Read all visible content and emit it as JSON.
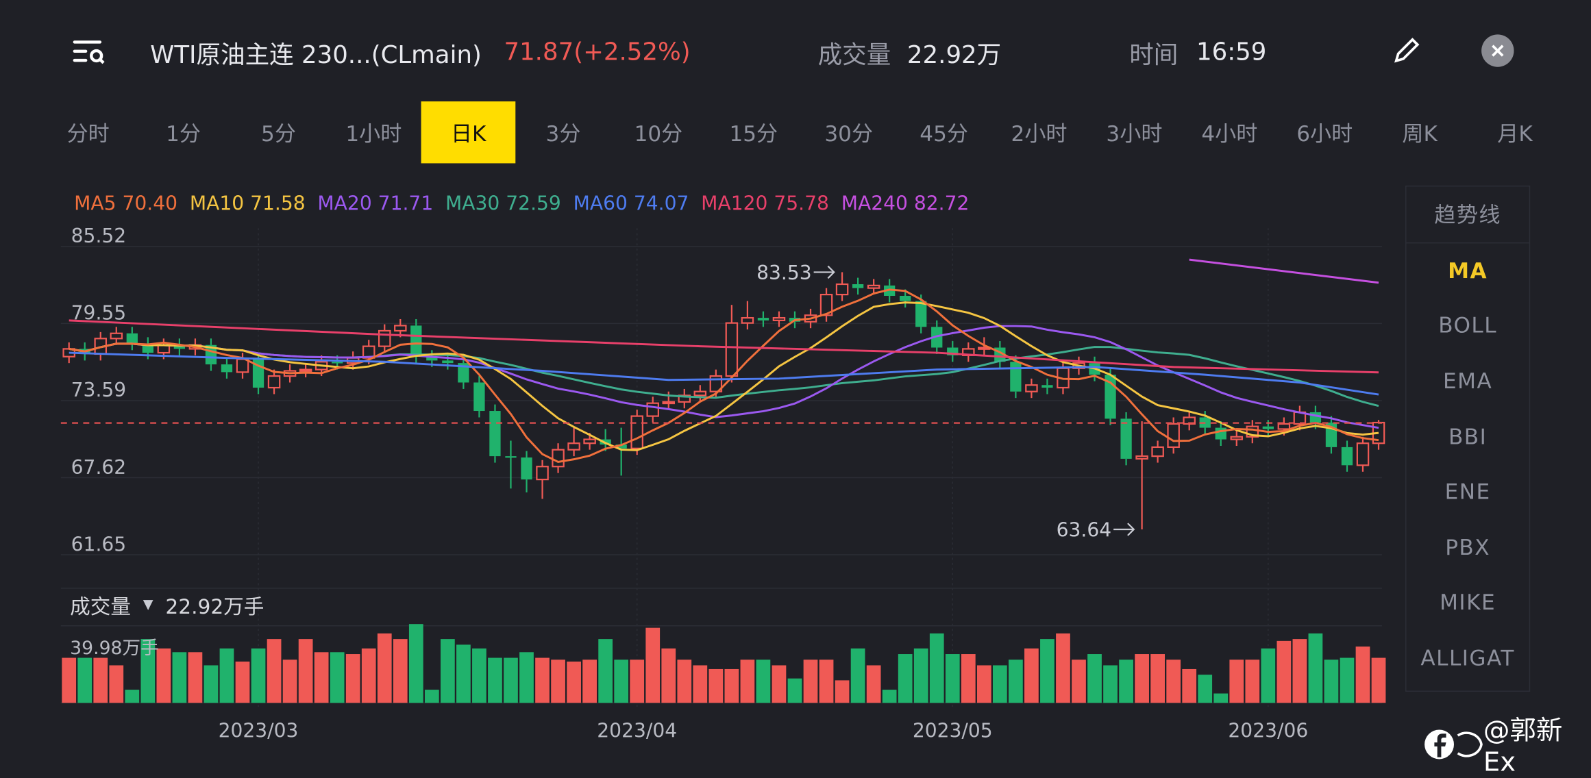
{
  "header": {
    "title": "WTI原油主连 230...(CLmain)",
    "price": "71.87(+2.52%)",
    "volume_label": "成交量",
    "volume_value": "22.92万",
    "time_label": "时间",
    "time_value": "16:59"
  },
  "tabs": [
    "分时",
    "1分",
    "5分",
    "1小时",
    "日K",
    "3分",
    "10分",
    "15分",
    "30分",
    "45分",
    "2小时",
    "3小时",
    "4小时",
    "6小时",
    "周K",
    "月K"
  ],
  "active_tab": "日K",
  "ma_legend": [
    {
      "label": "MA5 70.40",
      "color": "#f0703c"
    },
    {
      "label": "MA10 71.58",
      "color": "#f5c542"
    },
    {
      "label": "MA20 71.71",
      "color": "#9b59f0"
    },
    {
      "label": "MA30 72.59",
      "color": "#3fae8f"
    },
    {
      "label": "MA60 74.07",
      "color": "#4e7cf0"
    },
    {
      "label": "MA120 75.78",
      "color": "#e8406a"
    },
    {
      "label": "MA240 82.72",
      "color": "#c550e0"
    }
  ],
  "indicators": [
    "趋势线",
    "MA",
    "BOLL",
    "EMA",
    "BBI",
    "ENE",
    "PBX",
    "MIKE",
    "ALLIGAT"
  ],
  "active_indicator": "MA",
  "volume_panel": {
    "label": "成交量",
    "value": "22.92万手",
    "max_label": "39.98万手"
  },
  "watermark": "@郭新Ex",
  "colors": {
    "up": "#f05a55",
    "down": "#20b26c",
    "accent": "#ffdd00"
  },
  "chart_data": {
    "type": "candlestick",
    "y_ticks": [
      "85.52",
      "79.55",
      "73.59",
      "67.62",
      "61.65"
    ],
    "ylim": [
      61.65,
      85.52
    ],
    "last_price": 71.87,
    "annotations": [
      {
        "text": "83.53",
        "index": 49,
        "value": 83.53
      },
      {
        "text": "63.64",
        "index": 68,
        "value": 63.64
      }
    ],
    "x_labels": [
      {
        "text": "2023/03",
        "index": 12
      },
      {
        "text": "2023/04",
        "index": 36
      },
      {
        "text": "2023/05",
        "index": 56
      },
      {
        "text": "2023/06",
        "index": 76
      }
    ],
    "ohlc": [
      [
        77.0,
        78.1,
        76.5,
        77.6
      ],
      [
        77.6,
        78.1,
        76.7,
        77.2
      ],
      [
        77.2,
        78.9,
        76.7,
        78.4
      ],
      [
        78.4,
        79.3,
        77.9,
        78.8
      ],
      [
        78.8,
        79.3,
        77.5,
        78.0
      ],
      [
        78.0,
        78.5,
        76.8,
        77.3
      ],
      [
        77.3,
        78.4,
        76.8,
        77.9
      ],
      [
        77.9,
        78.4,
        77.1,
        77.6
      ],
      [
        77.6,
        78.4,
        77.1,
        77.9
      ],
      [
        77.9,
        78.4,
        75.9,
        76.4
      ],
      [
        76.4,
        76.9,
        75.3,
        75.8
      ],
      [
        75.8,
        77.3,
        75.3,
        76.8
      ],
      [
        76.8,
        77.3,
        74.1,
        74.6
      ],
      [
        74.6,
        76.0,
        74.1,
        75.5
      ],
      [
        75.5,
        76.4,
        75.0,
        75.9
      ],
      [
        75.9,
        76.5,
        75.4,
        76.0
      ],
      [
        76.0,
        77.1,
        75.5,
        76.6
      ],
      [
        76.6,
        77.1,
        76.0,
        76.5
      ],
      [
        76.5,
        77.4,
        76.0,
        76.9
      ],
      [
        76.9,
        78.3,
        76.4,
        77.8
      ],
      [
        77.8,
        79.5,
        77.3,
        79.0
      ],
      [
        79.0,
        79.9,
        78.5,
        79.4
      ],
      [
        79.4,
        79.9,
        76.5,
        77.0
      ],
      [
        77.0,
        77.5,
        76.2,
        76.7
      ],
      [
        76.7,
        77.2,
        76.0,
        76.5
      ],
      [
        76.5,
        77.0,
        74.5,
        75.0
      ],
      [
        75.0,
        75.5,
        72.3,
        72.8
      ],
      [
        72.8,
        73.3,
        68.8,
        69.3
      ],
      [
        69.3,
        70.5,
        66.8,
        69.2
      ],
      [
        69.2,
        69.7,
        66.5,
        67.5
      ],
      [
        67.5,
        69.0,
        66.0,
        68.5
      ],
      [
        68.5,
        70.3,
        68.0,
        69.8
      ],
      [
        69.8,
        71.5,
        69.3,
        70.3
      ],
      [
        70.3,
        71.1,
        69.8,
        70.6
      ],
      [
        70.6,
        71.4,
        69.7,
        70.2
      ],
      [
        70.2,
        71.5,
        67.8,
        69.9
      ],
      [
        69.9,
        72.9,
        69.4,
        72.4
      ],
      [
        72.4,
        73.9,
        71.9,
        73.4
      ],
      [
        73.4,
        74.3,
        72.9,
        73.5
      ],
      [
        73.5,
        74.5,
        73.0,
        74.0
      ],
      [
        74.0,
        74.8,
        73.5,
        74.3
      ],
      [
        74.3,
        76.0,
        73.8,
        75.5
      ],
      [
        75.5,
        81.0,
        75.0,
        79.6
      ],
      [
        79.6,
        81.3,
        79.1,
        80.0
      ],
      [
        80.0,
        80.5,
        79.3,
        79.8
      ],
      [
        79.8,
        80.5,
        79.3,
        80.0
      ],
      [
        80.0,
        80.5,
        79.2,
        79.7
      ],
      [
        79.7,
        80.7,
        79.2,
        80.2
      ],
      [
        80.2,
        82.3,
        79.7,
        81.8
      ],
      [
        81.8,
        83.53,
        81.3,
        82.6
      ],
      [
        82.6,
        83.1,
        81.8,
        82.3
      ],
      [
        82.3,
        83.0,
        81.8,
        82.5
      ],
      [
        82.5,
        83.0,
        81.2,
        81.7
      ],
      [
        81.7,
        82.2,
        80.8,
        81.3
      ],
      [
        81.3,
        81.8,
        78.8,
        79.3
      ],
      [
        79.3,
        79.8,
        77.2,
        77.7
      ],
      [
        77.7,
        78.2,
        76.6,
        77.1
      ],
      [
        77.1,
        78.1,
        76.6,
        77.6
      ],
      [
        77.6,
        78.5,
        77.1,
        77.7
      ],
      [
        77.7,
        78.2,
        76.1,
        76.6
      ],
      [
        76.6,
        77.1,
        73.8,
        74.3
      ],
      [
        74.3,
        75.3,
        73.8,
        74.8
      ],
      [
        74.8,
        75.3,
        74.1,
        74.6
      ],
      [
        74.6,
        76.6,
        74.1,
        76.1
      ],
      [
        76.1,
        77.0,
        75.6,
        76.5
      ],
      [
        76.5,
        77.0,
        75.1,
        75.6
      ],
      [
        75.6,
        76.1,
        71.7,
        72.2
      ],
      [
        72.2,
        72.7,
        68.6,
        69.1
      ],
      [
        69.1,
        72.0,
        63.64,
        69.3
      ],
      [
        69.3,
        70.5,
        68.8,
        70.0
      ],
      [
        70.0,
        72.3,
        69.5,
        71.8
      ],
      [
        71.8,
        72.8,
        71.3,
        72.3
      ],
      [
        72.3,
        72.8,
        71.0,
        71.5
      ],
      [
        71.5,
        72.0,
        70.1,
        70.6
      ],
      [
        70.6,
        71.3,
        70.1,
        70.8
      ],
      [
        70.8,
        72.1,
        70.3,
        71.6
      ],
      [
        71.6,
        72.1,
        70.9,
        71.4
      ],
      [
        71.4,
        72.3,
        70.9,
        71.8
      ],
      [
        71.8,
        73.2,
        71.3,
        72.7
      ],
      [
        72.7,
        73.2,
        71.4,
        71.9
      ],
      [
        71.9,
        72.4,
        69.5,
        70.0
      ],
      [
        70.0,
        70.5,
        68.1,
        68.6
      ],
      [
        68.6,
        70.8,
        68.1,
        70.3
      ],
      [
        70.3,
        72.1,
        69.8,
        71.9
      ]
    ],
    "volume": [
      24,
      24,
      24,
      20,
      7,
      34,
      29,
      27,
      27,
      20,
      29,
      22,
      29,
      34,
      23,
      34,
      27,
      27,
      26,
      29,
      37,
      34,
      42,
      7,
      34,
      31,
      29,
      24,
      24,
      27,
      24,
      23,
      22,
      23,
      34,
      23,
      23,
      40,
      29,
      23,
      20,
      18,
      18,
      23,
      23,
      20,
      13,
      23,
      23,
      12,
      29,
      20,
      7,
      26,
      29,
      37,
      26,
      26,
      20,
      20,
      23,
      29,
      34,
      37,
      23,
      26,
      20,
      23,
      26,
      26,
      23,
      18,
      15,
      5,
      23,
      23,
      29,
      33,
      34,
      37,
      23,
      24,
      30,
      24
    ],
    "ma_long": {
      "MA60": [
        [
          0,
          77.3
        ],
        [
          10,
          76.9
        ],
        [
          20,
          76.6
        ],
        [
          30,
          75.9
        ],
        [
          38,
          75.2
        ],
        [
          45,
          75.3
        ],
        [
          55,
          76.0
        ],
        [
          65,
          76.2
        ],
        [
          72,
          75.6
        ],
        [
          78,
          75.0
        ],
        [
          83,
          74.07
        ]
      ],
      "MA120": [
        [
          0,
          79.8
        ],
        [
          20,
          78.7
        ],
        [
          40,
          77.8
        ],
        [
          55,
          77.3
        ],
        [
          70,
          76.2
        ],
        [
          83,
          75.78
        ]
      ],
      "MA240": [
        [
          71,
          84.5
        ],
        [
          83,
          82.72
        ]
      ]
    }
  }
}
